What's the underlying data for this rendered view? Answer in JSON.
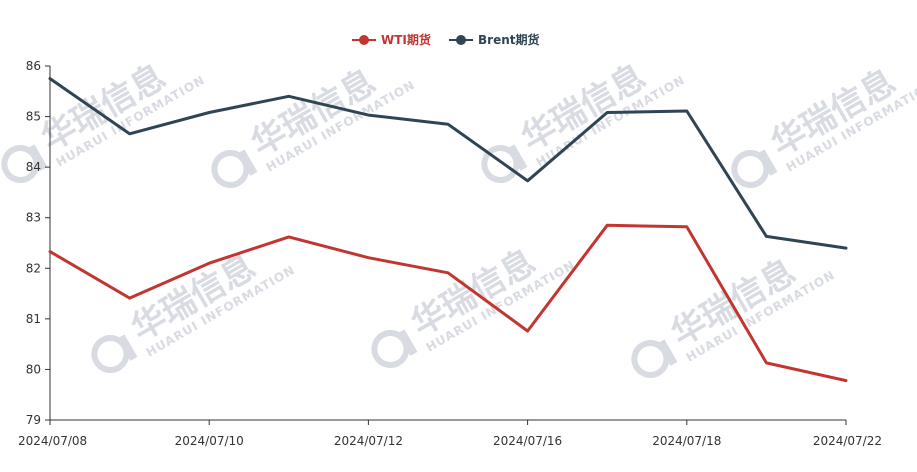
{
  "watermark": {
    "cn": "华瑞信息",
    "en": "HUARUI INFORMATION"
  },
  "chart_data": {
    "type": "line",
    "x": [
      "2024/07/08",
      "2024/07/09",
      "2024/07/10",
      "2024/07/11",
      "2024/07/12",
      "2024/07/15",
      "2024/07/16",
      "2024/07/17",
      "2024/07/18",
      "2024/07/19",
      "2024/07/22"
    ],
    "x_tick_labels": [
      "2024/07/08",
      "2024/07/10",
      "2024/07/12",
      "2024/07/16",
      "2024/07/18",
      "2024/07/22"
    ],
    "y_tick_labels": [
      "79",
      "80",
      "81",
      "82",
      "83",
      "84",
      "85",
      "86"
    ],
    "ylim": [
      79,
      86
    ],
    "legend_position": "top-center",
    "grid": false,
    "series": [
      {
        "name": "WTI期货",
        "color": "#c23531",
        "values": [
          82.33,
          81.41,
          82.1,
          82.62,
          82.21,
          81.91,
          80.76,
          82.85,
          82.82,
          80.13,
          79.78
        ]
      },
      {
        "name": "Brent期货",
        "color": "#2f4554",
        "values": [
          85.75,
          84.66,
          85.08,
          85.4,
          85.03,
          84.85,
          83.73,
          85.08,
          85.11,
          82.63,
          82.4
        ]
      }
    ]
  }
}
